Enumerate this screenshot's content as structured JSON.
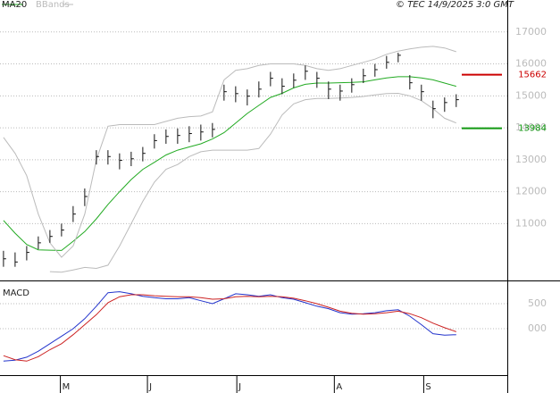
{
  "chart_data": [
    {
      "type": "ohlc",
      "credit": "© TEC 14/9/2025 3:0 GMT",
      "xlim": [
        -0.3,
        43.4
      ],
      "ylim": [
        9250,
        18000
      ],
      "yticks": [
        11000,
        12000,
        13000,
        14000,
        15000,
        16000,
        17000
      ],
      "grid": true,
      "bar_color": "#111111",
      "high": [
        10150,
        10100,
        10300,
        10600,
        10800,
        11000,
        11550,
        12100,
        13300,
        13300,
        13200,
        13250,
        13400,
        13800,
        13950,
        13980,
        14050,
        14100,
        14150,
        15350,
        15300,
        15200,
        15450,
        15750,
        15550,
        15700,
        15950,
        15750,
        15450,
        15350,
        15550,
        15850,
        16000,
        16250,
        16350,
        15650,
        15350,
        14850,
        14950,
        15050
      ],
      "low": [
        9650,
        9650,
        9850,
        10200,
        10400,
        10600,
        11050,
        11550,
        12850,
        12850,
        12700,
        12800,
        12950,
        13350,
        13500,
        13500,
        13550,
        13600,
        13700,
        14850,
        14800,
        14700,
        14950,
        15300,
        15050,
        15250,
        15500,
        15250,
        14900,
        14850,
        15100,
        15400,
        15600,
        15850,
        16050,
        15200,
        14850,
        14300,
        14500,
        14650
      ],
      "close": [
        9900,
        9800,
        10100,
        10400,
        10600,
        10800,
        11300,
        11850,
        13100,
        13100,
        12980,
        13030,
        13200,
        13600,
        13730,
        13760,
        13820,
        13870,
        13950,
        15130,
        15070,
        14990,
        15210,
        15550,
        15300,
        15490,
        15770,
        15550,
        15210,
        15150,
        15350,
        15630,
        15820,
        16050,
        16270,
        15410,
        15130,
        14600,
        14790,
        14880
      ],
      "series": [
        {
          "name": "MA20",
          "color": "#22aa22",
          "values": [
            11100,
            10700,
            10350,
            10180,
            10170,
            10160,
            10450,
            10750,
            11150,
            11600,
            12000,
            12380,
            12700,
            12920,
            13150,
            13300,
            13400,
            13500,
            13650,
            13850,
            14150,
            14450,
            14700,
            14950,
            15080,
            15250,
            15360,
            15400,
            15400,
            15410,
            15420,
            15440,
            15500,
            15560,
            15600,
            15600,
            15560,
            15500,
            15400,
            15300
          ]
        },
        {
          "name": "BBands",
          "color": "#bbbbbb",
          "values": [
            13700,
            13200,
            12500,
            11300,
            10400,
            9950,
            10300,
            11300,
            13000,
            14050,
            14100,
            14100,
            14100,
            14100,
            14200,
            14300,
            14350,
            14370,
            14500,
            15500,
            15800,
            15850,
            15950,
            16000,
            16000,
            16000,
            15950,
            15850,
            15800,
            15850,
            15950,
            16050,
            16150,
            16300,
            16400,
            16470,
            16520,
            16550,
            16500,
            16380
          ],
          "lower": [
            null,
            null,
            null,
            null,
            9500,
            9480,
            9550,
            9630,
            9600,
            9700,
            10300,
            11000,
            11700,
            12300,
            12700,
            12850,
            13100,
            13250,
            13300,
            13300,
            13300,
            13300,
            13350,
            13800,
            14400,
            14750,
            14880,
            14920,
            14920,
            14930,
            14950,
            14980,
            15030,
            15070,
            15080,
            15000,
            14850,
            14600,
            14300,
            14150
          ]
        }
      ],
      "levels": [
        {
          "value": 15662,
          "color": "#cc0000"
        },
        {
          "value": 13984,
          "color": "#119911"
        }
      ]
    },
    {
      "type": "line",
      "title": "MACD",
      "xlim": [
        -0.3,
        43.4
      ],
      "xticks": [
        {
          "value": 4.9,
          "label": "M"
        },
        {
          "value": 12.4,
          "label": "J"
        },
        {
          "value": 20.1,
          "label": "J"
        },
        {
          "value": 28.5,
          "label": "A"
        },
        {
          "value": 36.2,
          "label": "S"
        }
      ],
      "ylim": [
        -930,
        930
      ],
      "yticks": [
        {
          "value": 0,
          "label": "000"
        },
        500
      ],
      "grid": true,
      "series": [
        {
          "color": "#2233cc",
          "values": [
            -650,
            -630,
            -570,
            -450,
            -300,
            -150,
            0,
            200,
            450,
            720,
            740,
            700,
            650,
            620,
            600,
            600,
            620,
            560,
            500,
            600,
            700,
            680,
            650,
            680,
            620,
            590,
            520,
            450,
            400,
            320,
            290,
            300,
            320,
            360,
            380,
            250,
            80,
            -100,
            -130,
            -120
          ]
        },
        {
          "color": "#cc2222",
          "values": [
            -540,
            -620,
            -650,
            -560,
            -420,
            -300,
            -120,
            80,
            280,
            520,
            640,
            680,
            680,
            660,
            650,
            640,
            640,
            620,
            590,
            600,
            640,
            650,
            640,
            650,
            640,
            610,
            560,
            500,
            430,
            350,
            310,
            290,
            300,
            320,
            350,
            300,
            220,
            110,
            20,
            -60
          ]
        }
      ]
    }
  ]
}
